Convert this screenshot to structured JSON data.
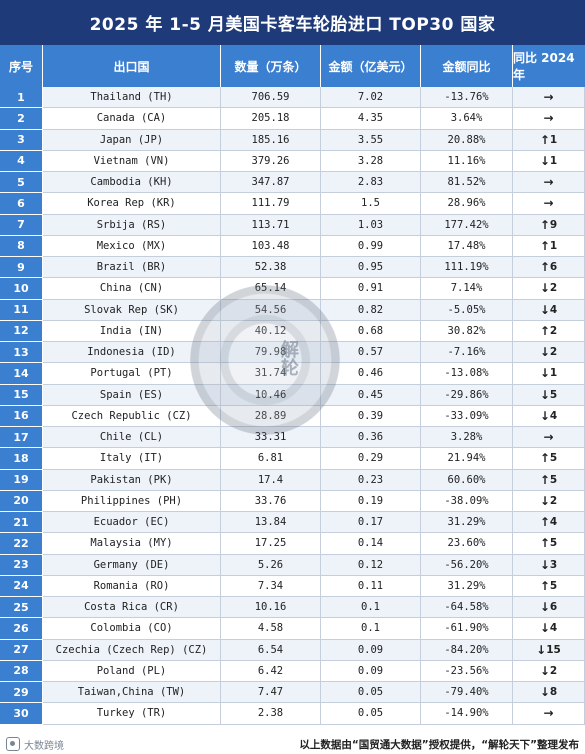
{
  "title": "2025 年 1-5 月美国卡客车轮胎进口 TOP30 国家",
  "columns": [
    "序号",
    "出口国",
    "数量（万条）",
    "金额（亿美元）",
    "金额同比",
    "同比 2024 年"
  ],
  "rows": [
    {
      "rank": "1",
      "country": "Thailand (TH)",
      "qty": "706.59",
      "amount": "7.02",
      "yoy": "-13.76%",
      "change": {
        "arrow": "→",
        "dir": "flat",
        "num": ""
      }
    },
    {
      "rank": "2",
      "country": "Canada (CA)",
      "qty": "205.18",
      "amount": "4.35",
      "yoy": "3.64%",
      "change": {
        "arrow": "→",
        "dir": "flat",
        "num": ""
      }
    },
    {
      "rank": "3",
      "country": "Japan (JP)",
      "qty": "185.16",
      "amount": "3.55",
      "yoy": "20.88%",
      "change": {
        "arrow": "↑",
        "dir": "up",
        "num": "1"
      }
    },
    {
      "rank": "4",
      "country": "Vietnam (VN)",
      "qty": "379.26",
      "amount": "3.28",
      "yoy": "11.16%",
      "change": {
        "arrow": "↓",
        "dir": "down",
        "num": "1"
      }
    },
    {
      "rank": "5",
      "country": "Cambodia (KH)",
      "qty": "347.87",
      "amount": "2.83",
      "yoy": "81.52%",
      "change": {
        "arrow": "→",
        "dir": "flat",
        "num": ""
      }
    },
    {
      "rank": "6",
      "country": "Korea Rep (KR)",
      "qty": "111.79",
      "amount": "1.5",
      "yoy": "28.96%",
      "change": {
        "arrow": "→",
        "dir": "flat",
        "num": ""
      }
    },
    {
      "rank": "7",
      "country": "Srbija (RS)",
      "qty": "113.71",
      "amount": "1.03",
      "yoy": "177.42%",
      "change": {
        "arrow": "↑",
        "dir": "up",
        "num": "9"
      }
    },
    {
      "rank": "8",
      "country": "Mexico (MX)",
      "qty": "103.48",
      "amount": "0.99",
      "yoy": "17.48%",
      "change": {
        "arrow": "↑",
        "dir": "up",
        "num": "1"
      }
    },
    {
      "rank": "9",
      "country": "Brazil (BR)",
      "qty": "52.38",
      "amount": "0.95",
      "yoy": "111.19%",
      "change": {
        "arrow": "↑",
        "dir": "up",
        "num": "6"
      }
    },
    {
      "rank": "10",
      "country": "China (CN)",
      "qty": "65.14",
      "amount": "0.91",
      "yoy": "7.14%",
      "change": {
        "arrow": "↓",
        "dir": "down",
        "num": "2"
      }
    },
    {
      "rank": "11",
      "country": "Slovak Rep (SK)",
      "qty": "54.56",
      "amount": "0.82",
      "yoy": "-5.05%",
      "change": {
        "arrow": "↓",
        "dir": "down",
        "num": "4"
      }
    },
    {
      "rank": "12",
      "country": "India (IN)",
      "qty": "40.12",
      "amount": "0.68",
      "yoy": "30.82%",
      "change": {
        "arrow": "↑",
        "dir": "up",
        "num": "2"
      }
    },
    {
      "rank": "13",
      "country": "Indonesia (ID)",
      "qty": "79.98",
      "amount": "0.57",
      "yoy": "-7.16%",
      "change": {
        "arrow": "↓",
        "dir": "down",
        "num": "2"
      }
    },
    {
      "rank": "14",
      "country": "Portugal (PT)",
      "qty": "31.74",
      "amount": "0.46",
      "yoy": "-13.08%",
      "change": {
        "arrow": "↓",
        "dir": "down",
        "num": "1"
      }
    },
    {
      "rank": "15",
      "country": "Spain (ES)",
      "qty": "10.46",
      "amount": "0.45",
      "yoy": "-29.86%",
      "change": {
        "arrow": "↓",
        "dir": "down",
        "num": "5"
      }
    },
    {
      "rank": "16",
      "country": "Czech Republic (CZ)",
      "qty": "28.89",
      "amount": "0.39",
      "yoy": "-33.09%",
      "change": {
        "arrow": "↓",
        "dir": "down",
        "num": "4"
      }
    },
    {
      "rank": "17",
      "country": "Chile (CL)",
      "qty": "33.31",
      "amount": "0.36",
      "yoy": "3.28%",
      "change": {
        "arrow": "→",
        "dir": "flat",
        "num": ""
      }
    },
    {
      "rank": "18",
      "country": "Italy (IT)",
      "qty": "6.81",
      "amount": "0.29",
      "yoy": "21.94%",
      "change": {
        "arrow": "↑",
        "dir": "up",
        "num": "5"
      }
    },
    {
      "rank": "19",
      "country": "Pakistan (PK)",
      "qty": "17.4",
      "amount": "0.23",
      "yoy": "60.60%",
      "change": {
        "arrow": "↑",
        "dir": "up",
        "num": "5"
      }
    },
    {
      "rank": "20",
      "country": "Philippines (PH)",
      "qty": "33.76",
      "amount": "0.19",
      "yoy": "-38.09%",
      "change": {
        "arrow": "↓",
        "dir": "down",
        "num": "2"
      }
    },
    {
      "rank": "21",
      "country": "Ecuador (EC)",
      "qty": "13.84",
      "amount": "0.17",
      "yoy": "31.29%",
      "change": {
        "arrow": "↑",
        "dir": "up",
        "num": "4"
      }
    },
    {
      "rank": "22",
      "country": "Malaysia (MY)",
      "qty": "17.25",
      "amount": "0.14",
      "yoy": "23.60%",
      "change": {
        "arrow": "↑",
        "dir": "up",
        "num": "5"
      }
    },
    {
      "rank": "23",
      "country": "Germany (DE)",
      "qty": "5.26",
      "amount": "0.12",
      "yoy": "-56.20%",
      "change": {
        "arrow": "↓",
        "dir": "down",
        "num": "3"
      }
    },
    {
      "rank": "24",
      "country": "Romania (RO)",
      "qty": "7.34",
      "amount": "0.11",
      "yoy": "31.29%",
      "change": {
        "arrow": "↑",
        "dir": "up",
        "num": "5"
      }
    },
    {
      "rank": "25",
      "country": "Costa Rica (CR)",
      "qty": "10.16",
      "amount": "0.1",
      "yoy": "-64.58%",
      "change": {
        "arrow": "↓",
        "dir": "down",
        "num": "6"
      }
    },
    {
      "rank": "26",
      "country": "Colombia (CO)",
      "qty": "4.58",
      "amount": "0.1",
      "yoy": "-61.90%",
      "change": {
        "arrow": "↓",
        "dir": "down",
        "num": "4"
      }
    },
    {
      "rank": "27",
      "country": "Czechia (Czech Rep) (CZ)",
      "qty": "6.54",
      "amount": "0.09",
      "yoy": "-84.20%",
      "change": {
        "arrow": "↓",
        "dir": "down",
        "num": "15"
      }
    },
    {
      "rank": "28",
      "country": "Poland (PL)",
      "qty": "6.42",
      "amount": "0.09",
      "yoy": "-23.56%",
      "change": {
        "arrow": "↓",
        "dir": "down",
        "num": "2"
      }
    },
    {
      "rank": "29",
      "country": "Taiwan,China (TW)",
      "qty": "7.47",
      "amount": "0.05",
      "yoy": "-79.40%",
      "change": {
        "arrow": "↓",
        "dir": "down",
        "num": "8"
      }
    },
    {
      "rank": "30",
      "country": "Turkey (TR)",
      "qty": "2.38",
      "amount": "0.05",
      "yoy": "-14.90%",
      "change": {
        "arrow": "→",
        "dir": "flat",
        "num": ""
      }
    }
  ],
  "watermark_text": "解轮",
  "footer": {
    "brand": "大数跨境",
    "source": "以上数据由“国贸通大数据”授权提供，“解轮天下”整理发布"
  },
  "colors": {
    "title_bg": "#1f3a78",
    "header_bg": "#3b7fd1",
    "up": "#d62222",
    "down": "#1f9a3a",
    "flat": "#1a3fa8"
  }
}
